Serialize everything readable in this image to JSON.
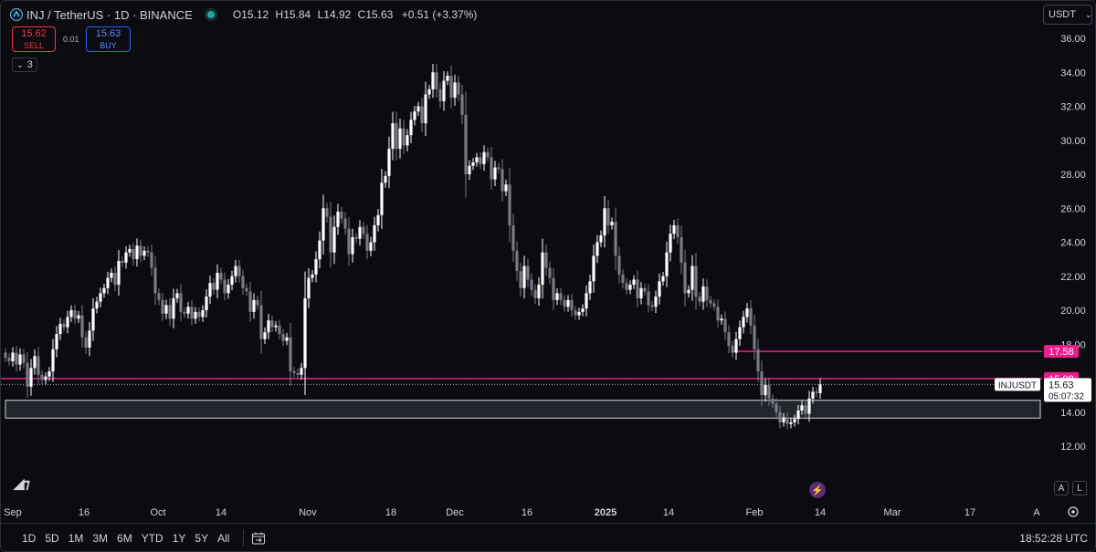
{
  "header": {
    "symbol": "INJ / TetherUS · 1D · BINANCE",
    "ohlc": {
      "o_label": "O",
      "o": "15.12",
      "h_label": "H",
      "h": "15.84",
      "l_label": "L",
      "l": "14.92",
      "c_label": "C",
      "c": "15.63",
      "change": "+0.51 (+3.37%)"
    }
  },
  "trade": {
    "sell_price": "15.62",
    "sell_label": "SELL",
    "spread": "0.01",
    "buy_price": "15.63",
    "buy_label": "BUY"
  },
  "indicators_count": "3",
  "currency": "USDT",
  "price_axis": {
    "ticks": [
      "36.00",
      "34.00",
      "32.00",
      "30.00",
      "28.00",
      "26.00",
      "24.00",
      "22.00",
      "20.00",
      "18.00",
      "14.00",
      "12.00"
    ],
    "label_1758": "17.58",
    "label_1598": "15.98",
    "symbol_tag": "INJUSDT",
    "last_price": "15.63",
    "countdown": "05:07:32"
  },
  "time_axis": [
    "Sep",
    "16",
    "Oct",
    "14",
    "Nov",
    "18",
    "Dec",
    "16",
    "2025",
    "14",
    "Feb",
    "14",
    "Mar",
    "17",
    "A"
  ],
  "toolbar": {
    "ranges": [
      "1D",
      "5D",
      "1M",
      "3M",
      "6M",
      "YTD",
      "1Y",
      "5Y",
      "All"
    ],
    "clock": "18:52:28 UTC",
    "btn_a": "A",
    "btn_l": "L"
  },
  "colors": {
    "background": "#0b0b10",
    "candle": "#ffffff",
    "candle_down": "#787b86",
    "hline": "#e91e8c"
  },
  "chart_data": {
    "type": "candlestick",
    "title": "INJ / TetherUS · 1D · BINANCE",
    "ylim": [
      11,
      37
    ],
    "x_start": "2024-08-25",
    "x_end": "2025-02-14",
    "horizontal_lines": [
      17.58,
      15.98
    ],
    "zone": {
      "upper": 14.7,
      "lower": 13.65
    },
    "close": [
      17.2,
      17.0,
      17.5,
      16.8,
      17.4,
      16.9,
      15.5,
      16.6,
      17.3,
      16.2,
      15.9,
      16.1,
      16.4,
      17.7,
      18.6,
      19.2,
      19.0,
      19.6,
      20.0,
      19.5,
      19.7,
      18.4,
      17.8,
      18.8,
      20.1,
      20.5,
      21.0,
      21.3,
      21.9,
      22.2,
      21.5,
      22.9,
      22.8,
      23.4,
      23.6,
      23.0,
      23.8,
      23.2,
      23.5,
      23.4,
      22.5,
      21.0,
      20.6,
      19.8,
      20.3,
      19.5,
      20.7,
      21.0,
      19.9,
      19.8,
      20.2,
      19.5,
      19.9,
      19.6,
      20.0,
      20.8,
      21.6,
      21.2,
      22.2,
      21.8,
      21.0,
      21.5,
      22.0,
      22.6,
      22.0,
      21.3,
      21.1,
      19.9,
      20.6,
      20.3,
      18.3,
      18.7,
      19.4,
      19.0,
      19.1,
      18.6,
      18.2,
      18.4,
      16.4,
      16.3,
      16.2,
      16.6,
      20.7,
      21.9,
      22.1,
      23.0,
      24.1,
      26.0,
      25.5,
      23.4,
      24.9,
      25.8,
      25.4,
      24.8,
      23.3,
      24.3,
      24.2,
      24.9,
      24.5,
      23.5,
      24.0,
      25.0,
      25.6,
      27.5,
      27.9,
      29.5,
      31.0,
      29.5,
      30.7,
      29.7,
      30.3,
      31.2,
      31.7,
      32.0,
      31.0,
      32.7,
      33.0,
      34.0,
      33.0,
      32.3,
      33.5,
      33.8,
      32.5,
      33.4,
      32.7,
      31.5,
      28.0,
      28.5,
      28.7,
      29.0,
      28.6,
      29.3,
      29.0,
      27.7,
      28.4,
      28.3,
      27.0,
      27.4,
      25.0,
      23.5,
      22.3,
      21.3,
      22.6,
      21.8,
      21.2,
      20.7,
      21.5,
      23.4,
      22.5,
      21.9,
      20.6,
      21.0,
      20.6,
      20.2,
      20.6,
      20.0,
      19.7,
      19.9,
      20.1,
      21.0,
      21.7,
      23.2,
      24.0,
      24.4,
      26.0,
      25.0,
      25.2,
      23.2,
      22.1,
      21.6,
      21.2,
      21.5,
      21.8,
      20.7,
      21.3,
      21.1,
      20.3,
      20.2,
      20.8,
      21.7,
      22.0,
      23.4,
      24.5,
      25.0,
      24.3,
      22.8,
      21.0,
      21.2,
      22.6,
      20.8,
      20.5,
      21.4,
      20.6,
      20.4,
      20.2,
      19.4,
      19.5,
      18.7,
      17.9,
      17.5,
      18.3,
      19.0,
      19.6,
      20.1,
      19.1,
      17.7,
      16.4,
      15.0,
      15.6,
      14.8,
      14.5,
      14.0,
      13.4,
      13.7,
      13.3,
      13.4,
      13.6,
      14.1,
      14.4,
      13.9,
      14.8,
      15.2,
      15.12,
      15.63
    ]
  }
}
